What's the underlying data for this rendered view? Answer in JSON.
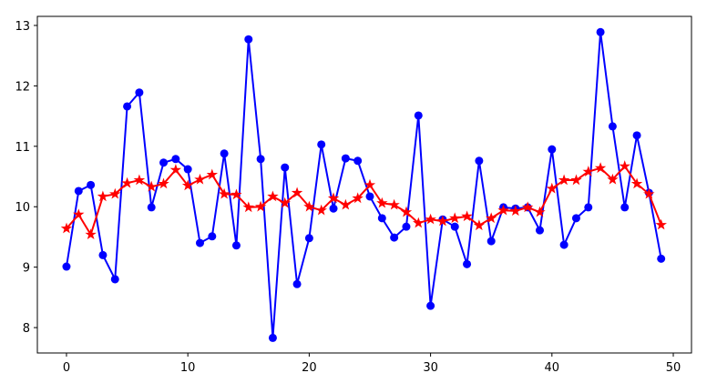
{
  "chart_data": {
    "type": "line",
    "x": [
      0,
      1,
      2,
      3,
      4,
      5,
      6,
      7,
      8,
      9,
      10,
      11,
      12,
      13,
      14,
      15,
      16,
      17,
      18,
      19,
      20,
      21,
      22,
      23,
      24,
      25,
      26,
      27,
      28,
      29,
      30,
      31,
      32,
      33,
      34,
      35,
      36,
      37,
      38,
      39,
      40,
      41,
      42,
      43,
      44,
      45,
      46,
      47,
      48,
      49
    ],
    "series": [
      {
        "color": "#0000ff",
        "marker": "circle",
        "values": [
          9.01,
          10.26,
          10.36,
          9.2,
          8.8,
          11.66,
          11.89,
          9.99,
          10.73,
          10.79,
          10.62,
          9.4,
          9.51,
          10.88,
          9.36,
          12.77,
          10.79,
          7.83,
          10.65,
          8.72,
          9.48,
          11.03,
          9.97,
          10.8,
          10.76,
          10.17,
          9.81,
          9.49,
          9.67,
          11.51,
          8.36,
          9.79,
          9.67,
          9.05,
          10.76,
          9.43,
          9.99,
          9.97,
          9.99,
          9.61,
          10.95,
          9.37,
          9.81,
          9.99,
          12.89,
          11.33,
          9.99,
          11.18,
          10.23,
          9.14
        ]
      },
      {
        "color": "#ff0000",
        "marker": "star",
        "values": [
          9.64,
          9.87,
          9.54,
          10.17,
          10.21,
          10.39,
          10.44,
          10.33,
          10.38,
          10.61,
          10.35,
          10.45,
          10.53,
          10.21,
          10.2,
          9.99,
          10.0,
          10.17,
          10.06,
          10.23,
          10.0,
          9.94,
          10.14,
          10.03,
          10.14,
          10.36,
          10.06,
          10.03,
          9.91,
          9.73,
          9.79,
          9.76,
          9.81,
          9.84,
          9.69,
          9.81,
          9.94,
          9.93,
          9.99,
          9.91,
          10.3,
          10.44,
          10.44,
          10.58,
          10.64,
          10.45,
          10.67,
          10.38,
          10.21,
          9.7
        ]
      }
    ],
    "xlim": [
      -2.4,
      51.5
    ],
    "ylim": [
      7.58,
      13.15
    ],
    "xticks": [
      0,
      10,
      20,
      30,
      40,
      50
    ],
    "yticks": [
      8,
      9,
      10,
      11,
      12,
      13
    ]
  }
}
